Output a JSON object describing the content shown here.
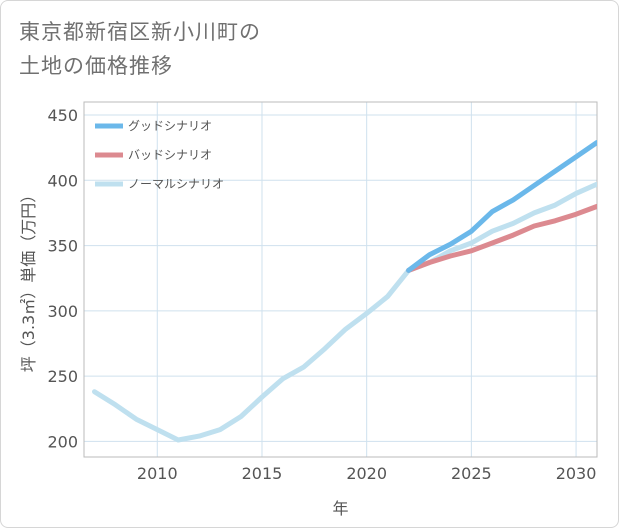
{
  "header": {
    "title_line1": "東京都新宿区新小川町の",
    "title_line2": "土地の価格推移"
  },
  "chart_data": {
    "type": "line",
    "title": "東京都新宿区新小川町の土地の価格推移",
    "xlabel": "年",
    "ylabel": "坪（3.3㎡）単価（万円）",
    "xlim": [
      2006.5,
      2031
    ],
    "ylim": [
      188,
      460
    ],
    "xticks": [
      2010,
      2015,
      2020,
      2025,
      2030
    ],
    "yticks": [
      200,
      250,
      300,
      350,
      400,
      450
    ],
    "grid": true,
    "legend_position": "top-left",
    "series": [
      {
        "name": "グッドシナリオ",
        "color": "#6bb8ea",
        "x": [
          2022,
          2023,
          2024,
          2025,
          2026,
          2027,
          2028,
          2029,
          2030,
          2031
        ],
        "y": [
          331,
          343,
          351,
          361,
          376,
          385,
          396,
          407,
          418,
          429
        ]
      },
      {
        "name": "バッドシナリオ",
        "color": "#dc8a90",
        "x": [
          2022,
          2023,
          2024,
          2025,
          2026,
          2027,
          2028,
          2029,
          2030,
          2031
        ],
        "y": [
          331,
          337,
          342,
          346,
          352,
          358,
          365,
          369,
          374,
          380
        ]
      },
      {
        "name": "ノーマルシナリオ",
        "color": "#bfe0ef",
        "x": [
          2007,
          2008,
          2009,
          2010,
          2011,
          2012,
          2013,
          2014,
          2015,
          2016,
          2017,
          2018,
          2019,
          2020,
          2021,
          2022,
          2023,
          2024,
          2025,
          2026,
          2027,
          2028,
          2029,
          2030,
          2031
        ],
        "y": [
          238,
          228,
          217,
          209,
          201,
          204,
          209,
          219,
          234,
          248,
          257,
          271,
          286,
          298,
          311,
          331,
          337,
          346,
          352,
          361,
          367,
          375,
          381,
          390,
          397
        ]
      }
    ]
  }
}
